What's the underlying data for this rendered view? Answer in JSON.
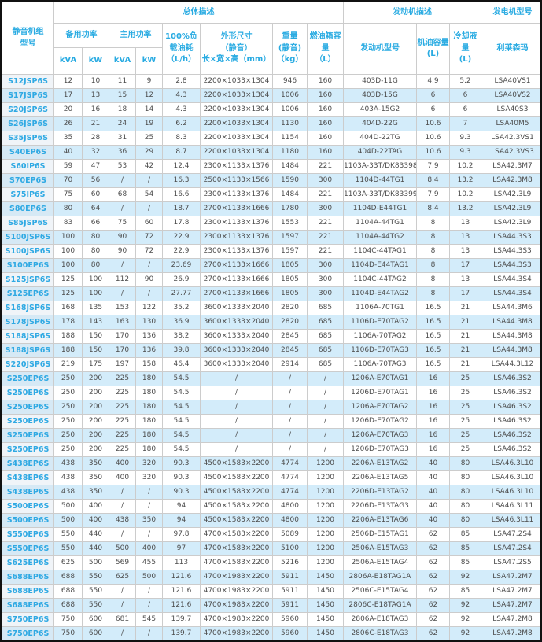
{
  "colors": {
    "accent_blue": "#29abe2",
    "alt_row_blue": "#d3ecfa",
    "model_col_bg": "#f0f4f8",
    "grid_line": "#cccccc",
    "data_text": "#4d4d4d",
    "outer_border": "#111111"
  },
  "table": {
    "header": {
      "model": "静音机组\n型号",
      "overall_section": "总体描述",
      "standby_power": "备用功率",
      "prime_power": "主用功率",
      "kva": "kVA",
      "kw": "kW",
      "fuel": "100%负\n载油耗\n（L/h）",
      "dims": "外形尺寸\n（静音）\n长×宽×高（mm）",
      "weight": "重量\n(静音)\n（kg）",
      "tank": "燃油箱容\n量\n（L）",
      "engine_section": "发动机描述",
      "engine_model": "发动机型号",
      "oil": "机油容量\n(L)",
      "coolant": "冷却液量\n(L)",
      "generator_section": "发电机型号",
      "alternator_brand": "利莱森玛"
    },
    "rows": [
      [
        "S12JSP6S",
        "12",
        "10",
        "11",
        "9",
        "2.8",
        "2200×1033×1304",
        "946",
        "160",
        "403D-11G",
        "4.9",
        "5.2",
        "LSA40VS1"
      ],
      [
        "S17JSP6S",
        "17",
        "13",
        "15",
        "12",
        "4.3",
        "2200×1033×1304",
        "1006",
        "160",
        "403D-15G",
        "6",
        "6",
        "LSA40VS2"
      ],
      [
        "S20JSP6S",
        "20",
        "16",
        "18",
        "14",
        "4.3",
        "2200×1033×1304",
        "1006",
        "160",
        "403A-15G2",
        "6",
        "6",
        "LSA40S3"
      ],
      [
        "S26JSP6S",
        "26",
        "21",
        "24",
        "19",
        "6.2",
        "2200×1033×1304",
        "1130",
        "160",
        "404D-22G",
        "10.6",
        "7",
        "LSA40M5"
      ],
      [
        "S35JSP6S",
        "35",
        "28",
        "31",
        "25",
        "8.3",
        "2200×1033×1304",
        "1154",
        "160",
        "404D-22TG",
        "10.6",
        "9.3",
        "LSA42.3VS1"
      ],
      [
        "S40EP6S",
        "40",
        "32",
        "36",
        "29",
        "8.7",
        "2200×1033×1304",
        "1180",
        "160",
        "404D-22TAG",
        "10.6",
        "9.3",
        "LSA42.3VS3"
      ],
      [
        "S60IP6S",
        "59",
        "47",
        "53",
        "42",
        "12.4",
        "2300×1133×1376",
        "1484",
        "221",
        "1103A-33T/DK83398S",
        "7.9",
        "10.2",
        "LSA42.3M7"
      ],
      [
        "S70EP6S",
        "70",
        "56",
        "/",
        "/",
        "16.3",
        "2500×1133×1566",
        "1590",
        "300",
        "1104D-44TG1",
        "8.4",
        "13.2",
        "LSA42.3M8"
      ],
      [
        "S75IP6S",
        "75",
        "60",
        "68",
        "54",
        "16.6",
        "2300×1133×1376",
        "1484",
        "221",
        "1103A-33T/DK83399S",
        "7.9",
        "10.2",
        "LSA42.3L9"
      ],
      [
        "S80EP6S",
        "80",
        "64",
        "/",
        "/",
        "18.7",
        "2700×1133×1666",
        "1780",
        "300",
        "1104D-E44TG1",
        "8.4",
        "13.2",
        "LSA42.3L9"
      ],
      [
        "S85JSP6S",
        "83",
        "66",
        "75",
        "60",
        "17.8",
        "2300×1133×1376",
        "1553",
        "221",
        "1104A-44TG1",
        "8",
        "13",
        "LSA42.3L9"
      ],
      [
        "S100JSP6S",
        "100",
        "80",
        "90",
        "72",
        "22.9",
        "2300×1133×1376",
        "1597",
        "221",
        "1104A-44TG2",
        "8",
        "13",
        "LSA44.3S3"
      ],
      [
        "S100JSP6S",
        "100",
        "80",
        "90",
        "72",
        "22.9",
        "2300×1133×1376",
        "1597",
        "221",
        "1104C-44TAG1",
        "8",
        "13",
        "LSA44.3S3"
      ],
      [
        "S100EP6S",
        "100",
        "80",
        "/",
        "/",
        "23.69",
        "2700×1133×1666",
        "1805",
        "300",
        "1104D-E44TAG1",
        "8",
        "17",
        "LSA44.3S3"
      ],
      [
        "S125JSP6S",
        "125",
        "100",
        "112",
        "90",
        "26.9",
        "2700×1133×1666",
        "1805",
        "300",
        "1104C-44TAG2",
        "8",
        "13",
        "LSA44.3S4"
      ],
      [
        "S125EP6S",
        "125",
        "100",
        "/",
        "/",
        "27.77",
        "2700×1133×1666",
        "1805",
        "300",
        "1104D-E44TAG2",
        "8",
        "17",
        "LSA44.3S4"
      ],
      [
        "S168JSP6S",
        "168",
        "135",
        "153",
        "122",
        "35.2",
        "3600×1333×2040",
        "2820",
        "685",
        "1106A-70TG1",
        "16.5",
        "21",
        "LSA44.3M6"
      ],
      [
        "S178JSP6S",
        "178",
        "143",
        "163",
        "130",
        "36.9",
        "3600×1333×2040",
        "2820",
        "685",
        "1106D-E70TAG2",
        "16.5",
        "21",
        "LSA44.3M8"
      ],
      [
        "S188JSP6S",
        "188",
        "150",
        "170",
        "136",
        "38.2",
        "3600×1333×2040",
        "2845",
        "685",
        "1106A-70TAG2",
        "16.5",
        "21",
        "LSA44.3M8"
      ],
      [
        "S188JSP6S",
        "188",
        "150",
        "170",
        "136",
        "39.8",
        "3600×1333×2040",
        "2845",
        "685",
        "1106D-E70TAG3",
        "16.5",
        "21",
        "LSA44.3M8"
      ],
      [
        "S220JSP6S",
        "219",
        "175",
        "197",
        "158",
        "46.4",
        "3600×1333×2040",
        "2914",
        "685",
        "1106A-70TAG3",
        "16.5",
        "21",
        "LSA44.3L12"
      ],
      [
        "S250EP6S",
        "250",
        "200",
        "225",
        "180",
        "54.5",
        "/",
        "/",
        "/",
        "1206A-E70TAG1",
        "16",
        "25",
        "LSA46.3S2"
      ],
      [
        "S250EP6S",
        "250",
        "200",
        "225",
        "180",
        "54.5",
        "/",
        "/",
        "/",
        "1206D-E70TAG1",
        "16",
        "25",
        "LSA46.3S2"
      ],
      [
        "S250EP6S",
        "250",
        "200",
        "225",
        "180",
        "54.5",
        "/",
        "/",
        "/",
        "1206A-E70TAG2",
        "16",
        "25",
        "LSA46.3S2"
      ],
      [
        "S250EP6S",
        "250",
        "200",
        "225",
        "180",
        "54.5",
        "/",
        "/",
        "/",
        "1206D-E70TAG2",
        "16",
        "25",
        "LSA46.3S2"
      ],
      [
        "S250EP6S",
        "250",
        "200",
        "225",
        "180",
        "54.5",
        "/",
        "/",
        "/",
        "1206A-E70TAG3",
        "16",
        "25",
        "LSA46.3S2"
      ],
      [
        "S250EP6S",
        "250",
        "200",
        "225",
        "180",
        "54.5",
        "/",
        "/",
        "/",
        "1206D-E70TAG3",
        "16",
        "25",
        "LSA46.3S2"
      ],
      [
        "S438EP6S",
        "438",
        "350",
        "400",
        "320",
        "90.3",
        "4500×1583×2200",
        "4774",
        "1200",
        "2206A-E13TAG2",
        "40",
        "80",
        "LSA46.3L10"
      ],
      [
        "S438EP6S",
        "438",
        "350",
        "400",
        "320",
        "90.3",
        "4500×1583×2200",
        "4774",
        "1200",
        "2206A-E13TAG5",
        "40",
        "80",
        "LSA46.3L10"
      ],
      [
        "S438EP6S",
        "438",
        "350",
        "/",
        "/",
        "90.3",
        "4500×1583×2200",
        "4774",
        "1200",
        "2206D-E13TAG2",
        "40",
        "80",
        "LSA46.3L10"
      ],
      [
        "S500EP6S",
        "500",
        "400",
        "/",
        "/",
        "94",
        "4500×1583×2200",
        "4800",
        "1200",
        "2206D-E13TAG3",
        "40",
        "80",
        "LSA46.3L11"
      ],
      [
        "S500EP6S",
        "500",
        "400",
        "438",
        "350",
        "94",
        "4500×1583×2200",
        "4800",
        "1200",
        "2206A-E13TAG6",
        "40",
        "80",
        "LSA46.3L11"
      ],
      [
        "S550EP6S",
        "550",
        "440",
        "/",
        "/",
        "97.8",
        "4700×1583×2200",
        "5089",
        "1200",
        "2506D-E15TAG1",
        "62",
        "85",
        "LSA47.2S4"
      ],
      [
        "S550EP6S",
        "550",
        "440",
        "500",
        "400",
        "97",
        "4700×1583×2200",
        "5100",
        "1200",
        "2506A-E15TAG3",
        "62",
        "85",
        "LSA47.2S4"
      ],
      [
        "S625EP6S",
        "625",
        "500",
        "569",
        "455",
        "113",
        "4700×1583×2200",
        "5216",
        "1200",
        "2506A-E15TAG4",
        "62",
        "85",
        "LSA47.2S5"
      ],
      [
        "S688EP6S",
        "688",
        "550",
        "625",
        "500",
        "121.6",
        "4700×1983×2200",
        "5911",
        "1450",
        "2806A-E18TAG1A",
        "62",
        "92",
        "LSA47.2M7"
      ],
      [
        "S688EP6S",
        "688",
        "550",
        "/",
        "/",
        "121.6",
        "4700×1983×2200",
        "5911",
        "1450",
        "2506C-E15TAG4",
        "62",
        "85",
        "LSA47.2M7"
      ],
      [
        "S688EP6S",
        "688",
        "550",
        "/",
        "/",
        "121.6",
        "4700×1983×2200",
        "5911",
        "1450",
        "2806C-E18TAG1A",
        "62",
        "92",
        "LSA47.2M7"
      ],
      [
        "S750EP6S",
        "750",
        "600",
        "681",
        "545",
        "139.7",
        "4700×1983×2200",
        "5960",
        "1450",
        "2806A-E18TAG3",
        "62",
        "92",
        "LSA47.2M8"
      ],
      [
        "S750EP6S",
        "750",
        "600",
        "/",
        "/",
        "139.7",
        "4700×1983×2200",
        "5960",
        "1450",
        "2806C-E18TAG3",
        "62",
        "92",
        "LSA47.2M8"
      ]
    ]
  }
}
